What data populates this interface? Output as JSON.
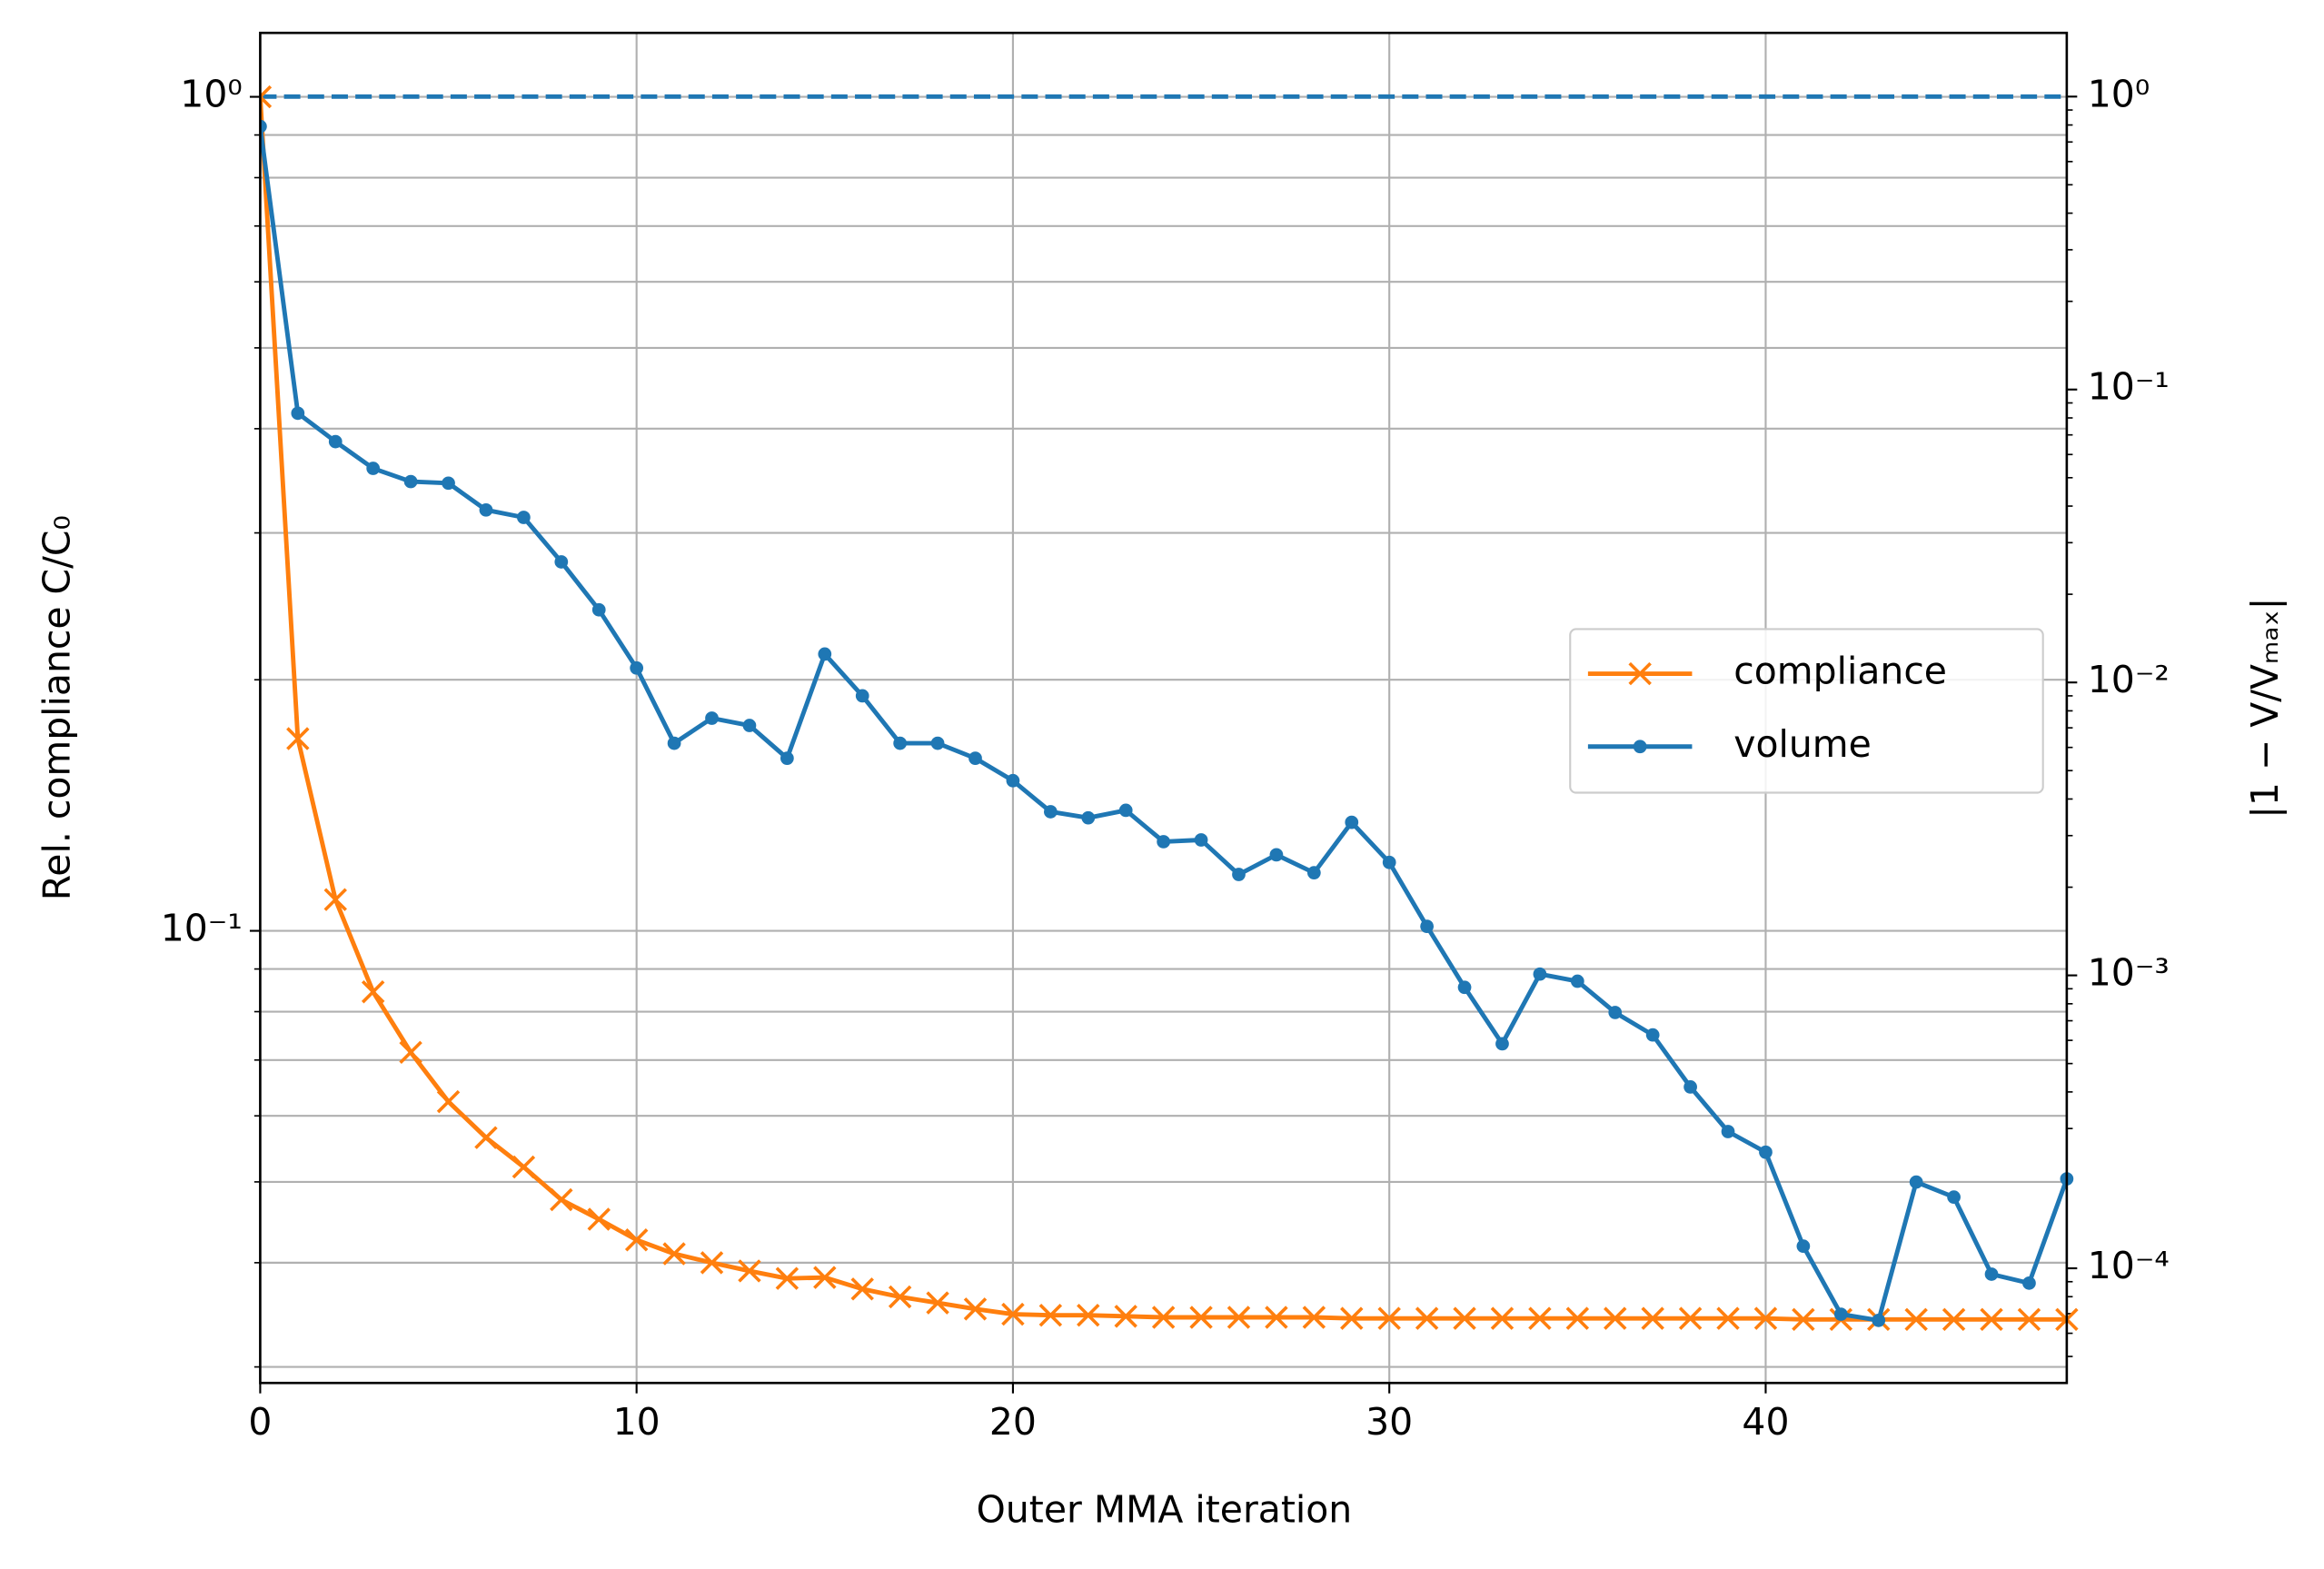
{
  "chart_data": {
    "type": "line",
    "xlabel": "Outer MMA iteration",
    "ylabel": "Rel. compliance C/C₀",
    "y2label": "|1 − V/Vₘₐₓ|",
    "x": [
      0,
      1,
      2,
      3,
      4,
      5,
      6,
      7,
      8,
      9,
      10,
      11,
      12,
      13,
      14,
      15,
      16,
      17,
      18,
      19,
      20,
      21,
      22,
      23,
      24,
      25,
      26,
      27,
      28,
      29,
      30,
      31,
      32,
      33,
      34,
      35,
      36,
      37,
      38,
      39,
      40,
      41,
      42,
      43,
      44,
      45,
      46,
      47,
      48
    ],
    "xlim": [
      0,
      48
    ],
    "xticks": [
      0,
      10,
      20,
      30,
      40
    ],
    "ylog": true,
    "ylim": [
      0.0287,
      1.193
    ],
    "yticks": [
      {
        "value": 0.1,
        "label": "10⁻¹"
      },
      {
        "value": 1,
        "label": "10⁰"
      }
    ],
    "yminorticks": [
      0.03,
      0.04,
      0.05,
      0.06,
      0.07,
      0.08,
      0.09,
      0.2,
      0.3,
      0.4,
      0.5,
      0.6,
      0.7,
      0.8,
      0.9
    ],
    "y2log": true,
    "y2lim": [
      4.06e-05,
      1.65
    ],
    "y2ticks": [
      {
        "value": 0.0001,
        "label": "10⁻⁴"
      },
      {
        "value": 0.001,
        "label": "10⁻³"
      },
      {
        "value": 0.01,
        "label": "10⁻²"
      },
      {
        "value": 0.1,
        "label": "10⁻¹"
      },
      {
        "value": 1,
        "label": "10⁰"
      }
    ],
    "y2minorticks": [
      5e-05,
      6e-05,
      7e-05,
      8e-05,
      9e-05,
      0.0002,
      0.0003,
      0.0004,
      0.0005,
      0.0006,
      0.0007,
      0.0008,
      0.0009,
      0.002,
      0.003,
      0.004,
      0.005,
      0.006,
      0.007,
      0.008,
      0.009,
      0.02,
      0.03,
      0.04,
      0.05,
      0.06,
      0.07,
      0.08,
      0.09,
      0.2,
      0.3,
      0.4,
      0.5,
      0.6,
      0.7,
      0.8,
      0.9
    ],
    "grid": true,
    "legend": "center right",
    "reference_line": {
      "value": 1,
      "axis": "y2",
      "color": "#1f77b4",
      "style": "dashed"
    },
    "series": [
      {
        "name": "compliance",
        "color": "#ff7f0e",
        "marker": "x",
        "values": [
          1.0,
          0.17,
          0.109,
          0.0845,
          0.0715,
          0.0624,
          0.0565,
          0.0521,
          0.0476,
          0.0451,
          0.0426,
          0.041,
          0.04,
          0.0391,
          0.0383,
          0.0384,
          0.0372,
          0.0364,
          0.0358,
          0.0352,
          0.0347,
          0.0346,
          0.0346,
          0.0345,
          0.0344,
          0.0344,
          0.0344,
          0.0344,
          0.0344,
          0.0343,
          0.0343,
          0.0343,
          0.0343,
          0.0343,
          0.0343,
          0.0343,
          0.0343,
          0.0343,
          0.0343,
          0.0343,
          0.0343,
          0.0342,
          0.0342,
          0.0342,
          0.0342,
          0.0342,
          0.0342,
          0.0342,
          0.0342
        ]
      },
      {
        "name": "volume",
        "color": "#1f77b4",
        "marker": "dot",
        "axis": "y2",
        "values": [
          0.791,
          0.083,
          0.0664,
          0.0538,
          0.0485,
          0.0479,
          0.0388,
          0.0366,
          0.0258,
          0.0177,
          0.0112,
          0.0062,
          0.00755,
          0.00713,
          0.00551,
          0.0125,
          0.009,
          0.0062,
          0.0062,
          0.00551,
          0.00462,
          0.00362,
          0.00345,
          0.00366,
          0.00286,
          0.0029,
          0.00221,
          0.00258,
          0.00224,
          0.00333,
          0.00243,
          0.00147,
          0.00091,
          0.000584,
          0.00101,
          0.000955,
          0.000747,
          0.000626,
          0.000416,
          0.000293,
          0.000249,
          0.000119,
          6.97e-05,
          6.64e-05,
          0.000197,
          0.000175,
          9.55e-05,
          8.9e-05,
          0.000202
        ]
      }
    ]
  }
}
